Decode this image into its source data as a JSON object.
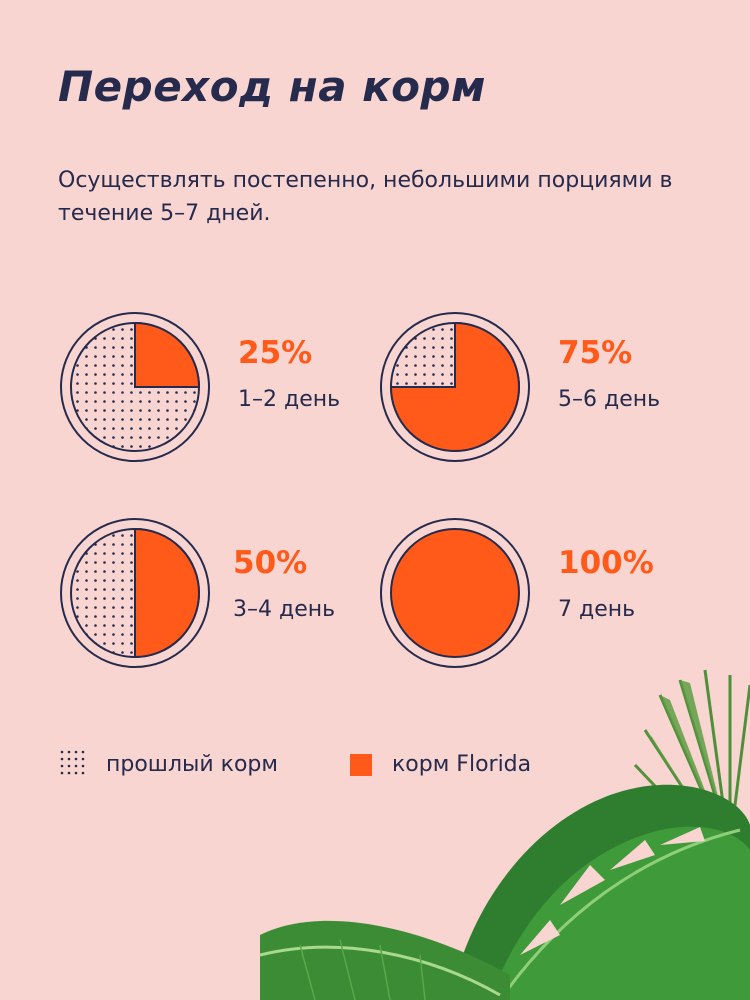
{
  "title": "Переход на корм",
  "subtitle": "Осуществлять постепенно, небольшими порциями в течение 5–7 дней.",
  "colors": {
    "background": "#f8d5d0",
    "navy": "#262a4d",
    "accent": "#ff5a1a"
  },
  "chart_data": {
    "type": "pie",
    "charts": [
      {
        "florida_share": 25,
        "percent_label": "25%",
        "day_label": "1–2 день"
      },
      {
        "florida_share": 75,
        "percent_label": "75%",
        "day_label": "5–6 день"
      },
      {
        "florida_share": 50,
        "percent_label": "50%",
        "day_label": "3–4 день"
      },
      {
        "florida_share": 100,
        "percent_label": "100%",
        "day_label": "7 день"
      }
    ]
  },
  "legend": {
    "previous": "прошлый корм",
    "florida": "корм Florida"
  },
  "decor": {
    "icon": "monstera-leaves-icon"
  }
}
